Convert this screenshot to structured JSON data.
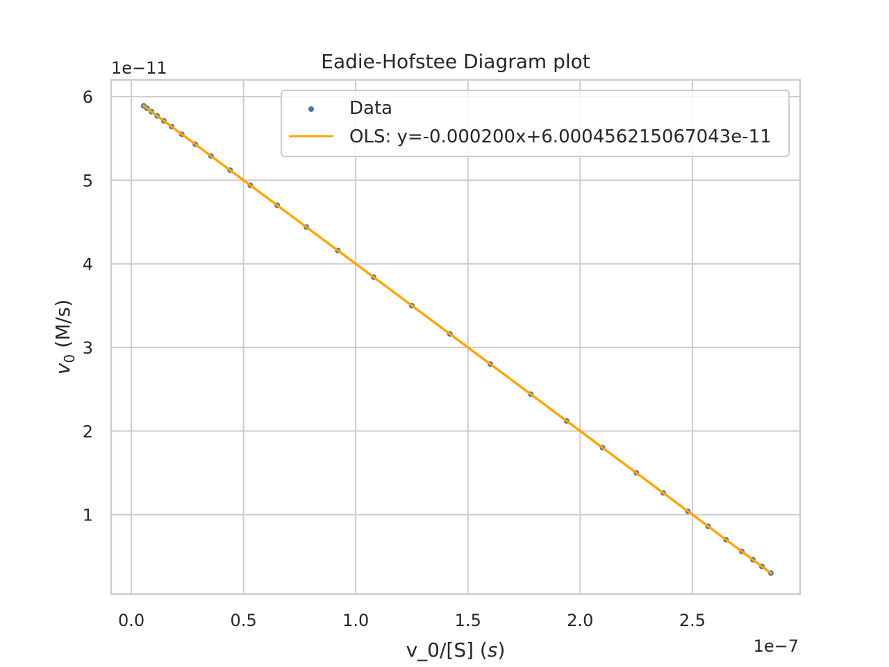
{
  "chart_data": {
    "type": "scatter",
    "title": "Eadie-Hofstee Diagram plot",
    "xlabel": "v_0/[S] (s)",
    "ylabel": "v0 (M/s)",
    "x_offset_label": "1e−7",
    "y_offset_label": "1e−11",
    "xlim": [
      -0.09,
      2.98
    ],
    "ylim": [
      0.05,
      6.2
    ],
    "x_ticks": [
      "0.0",
      "0.5",
      "1.0",
      "1.5",
      "2.0",
      "2.5"
    ],
    "x_tick_values": [
      0.0,
      0.5,
      1.0,
      1.5,
      2.0,
      2.5
    ],
    "y_ticks": [
      "1",
      "2",
      "3",
      "4",
      "5",
      "6"
    ],
    "y_tick_values": [
      1,
      2,
      3,
      4,
      5,
      6
    ],
    "grid": true,
    "legend_position": "top-right",
    "series": [
      {
        "name": "Data",
        "kind": "scatter",
        "color": "#4c72b0",
        "x": [
          0.055,
          0.07,
          0.09,
          0.115,
          0.145,
          0.18,
          0.225,
          0.285,
          0.355,
          0.44,
          0.53,
          0.65,
          0.78,
          0.92,
          1.08,
          1.25,
          1.42,
          1.6,
          1.78,
          1.94,
          2.1,
          2.25,
          2.37,
          2.48,
          2.57,
          2.65,
          2.72,
          2.77,
          2.81,
          2.85
        ],
        "y": [
          5.89,
          5.86,
          5.82,
          5.77,
          5.71,
          5.64,
          5.55,
          5.43,
          5.29,
          5.12,
          4.94,
          4.7,
          4.44,
          4.16,
          3.84,
          3.5,
          3.16,
          2.8,
          2.44,
          2.12,
          1.8,
          1.5,
          1.26,
          1.04,
          0.86,
          0.7,
          0.56,
          0.46,
          0.38,
          0.3
        ]
      },
      {
        "name": "OLS: y=-0.000200x+6.000456215067043e-11",
        "kind": "line",
        "color": "#ffa500",
        "slope": -2.0,
        "intercept": 6.000456215067043,
        "x_range": [
          0.055,
          2.85
        ]
      }
    ]
  }
}
